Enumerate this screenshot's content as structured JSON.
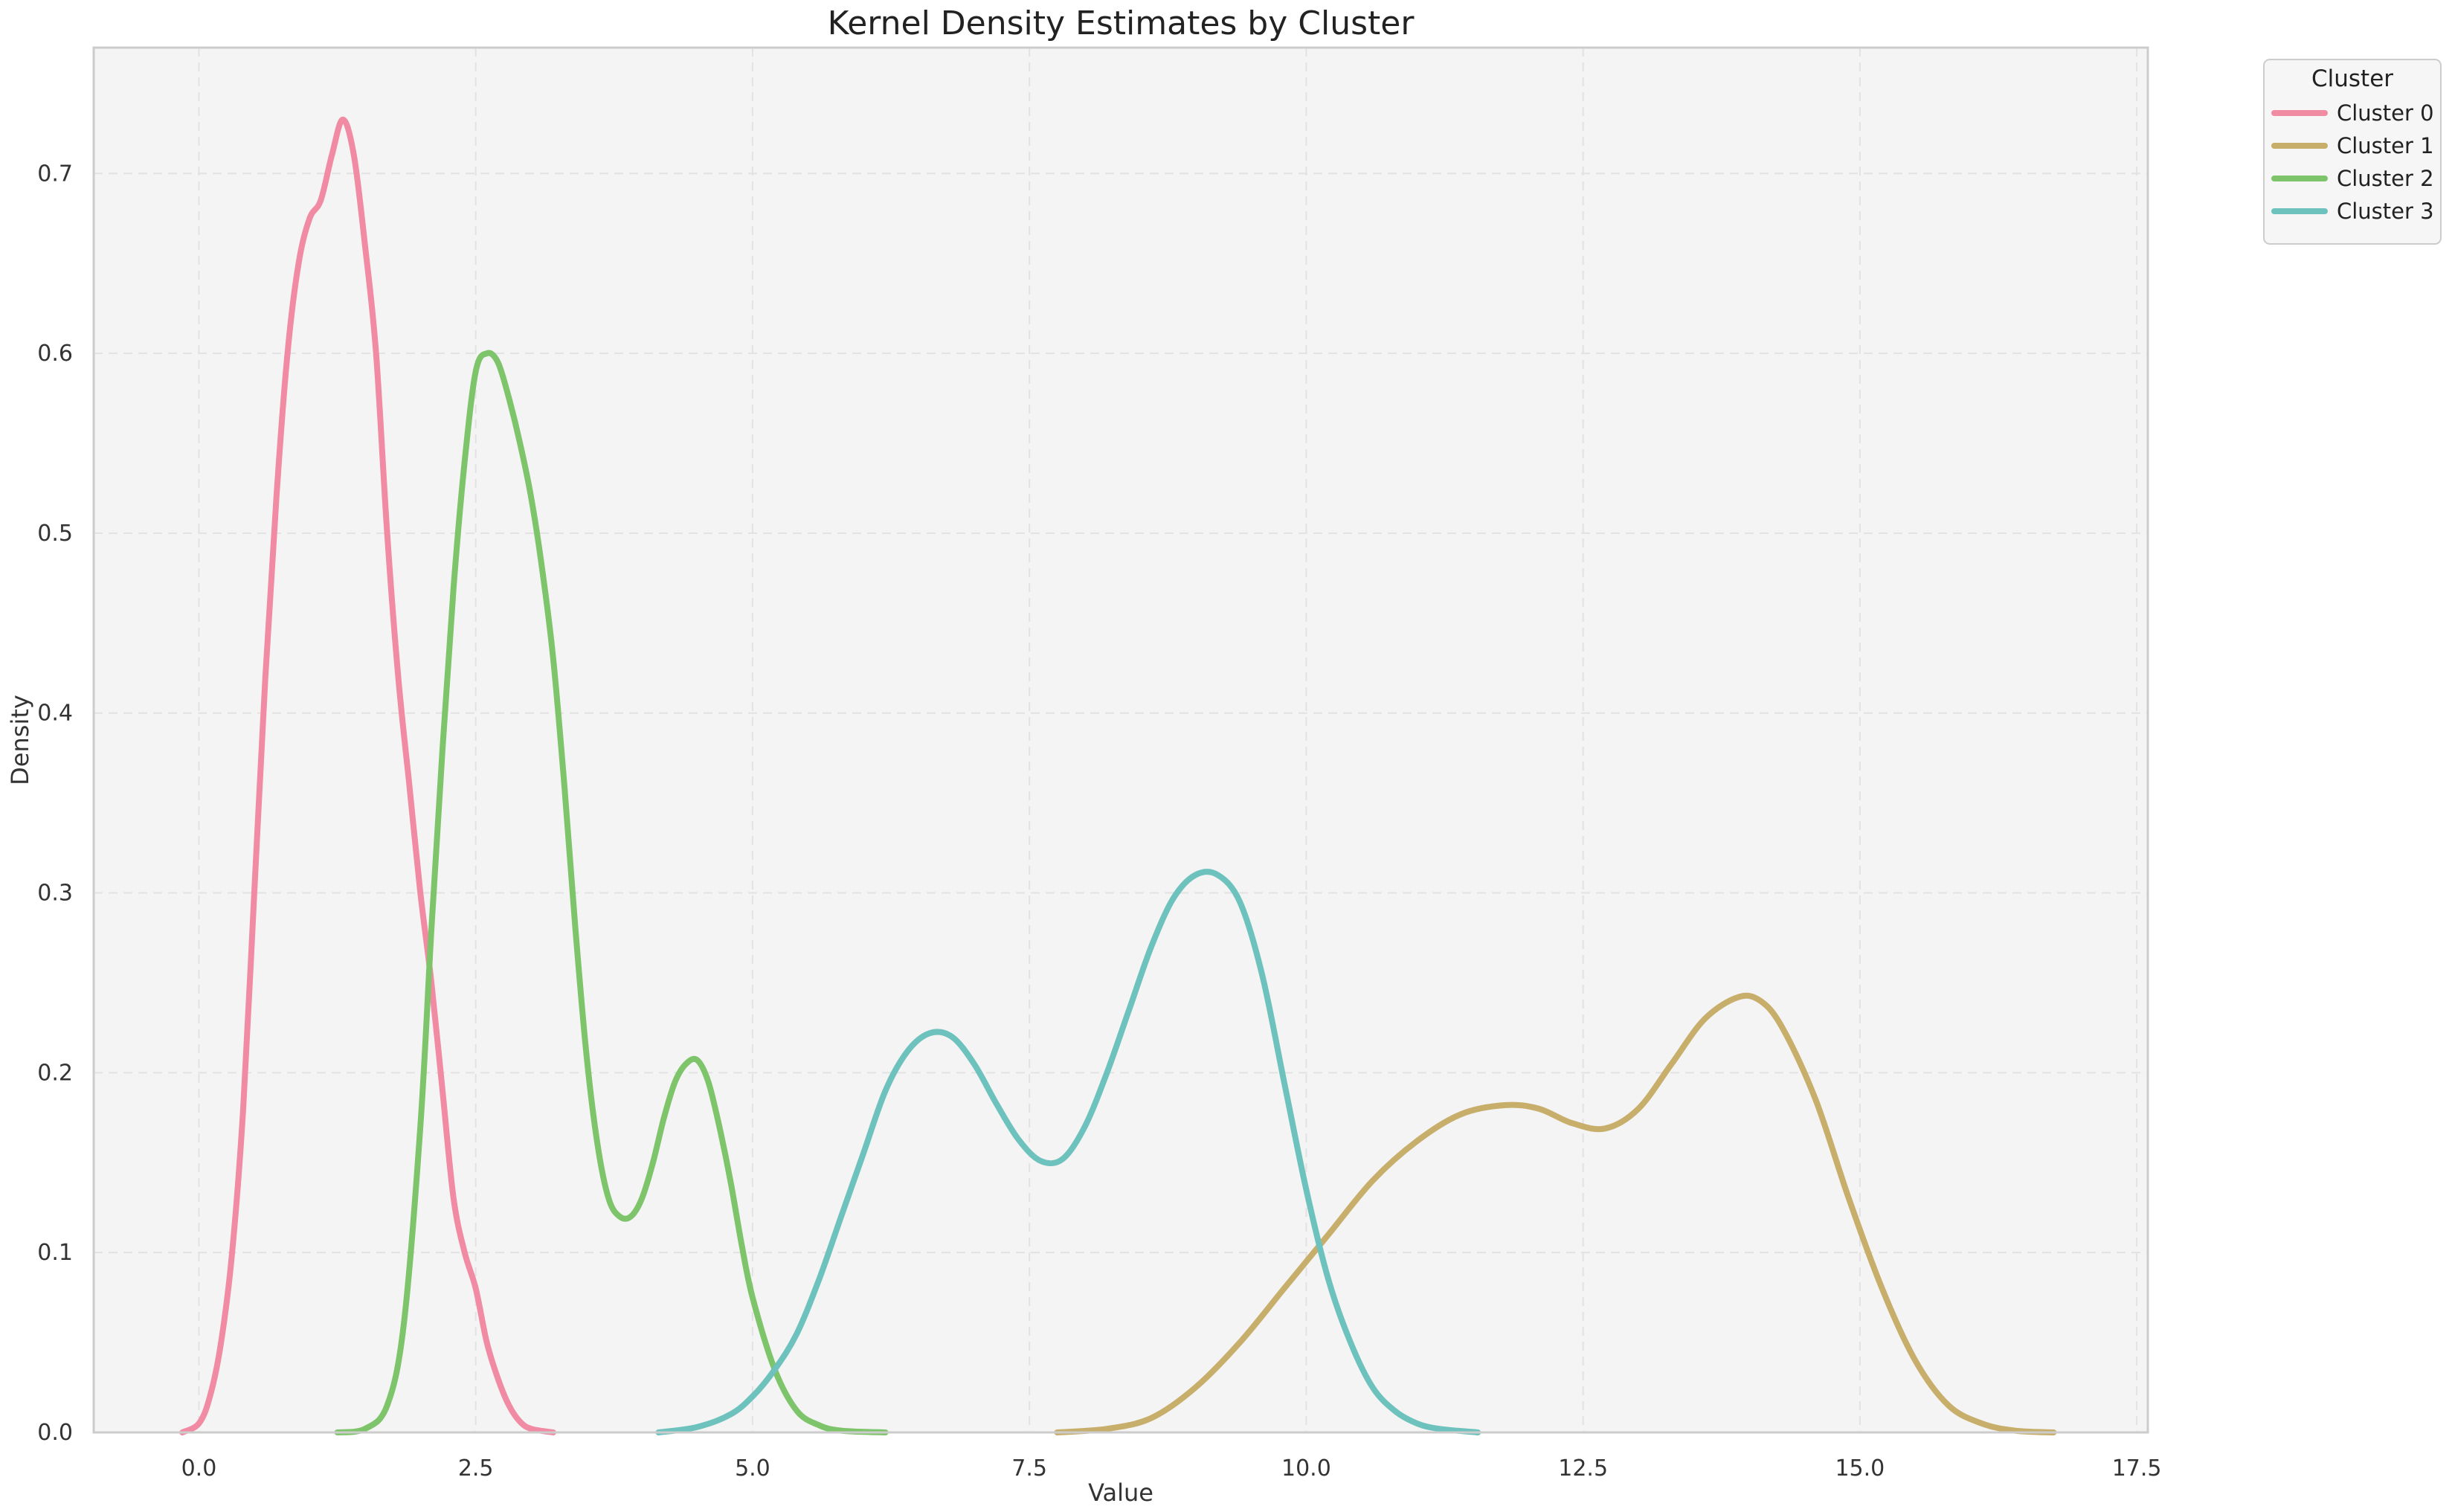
{
  "chart_data": {
    "type": "line",
    "title": "Kernel Density Estimates by Cluster",
    "xlabel": "Value",
    "ylabel": "Density",
    "xlim": [
      -0.95,
      17.6
    ],
    "ylim": [
      0,
      0.77
    ],
    "xticks": [
      0.0,
      2.5,
      5.0,
      7.5,
      10.0,
      12.5,
      15.0,
      17.5
    ],
    "xtick_labels": [
      "0.0",
      "2.5",
      "5.0",
      "7.5",
      "10.0",
      "12.5",
      "15.0",
      "17.5"
    ],
    "yticks": [
      0.0,
      0.1,
      0.2,
      0.3,
      0.4,
      0.5,
      0.6,
      0.7
    ],
    "ytick_labels": [
      "0.0",
      "0.1",
      "0.2",
      "0.3",
      "0.4",
      "0.5",
      "0.6",
      "0.7"
    ],
    "grid": true,
    "legend": {
      "title": "Cluster",
      "placement": "outside-top-right"
    },
    "series": [
      {
        "name": "Cluster 0",
        "color": "#f08ba3",
        "x": [
          -0.15,
          0.0,
          0.1,
          0.2,
          0.3,
          0.4,
          0.5,
          0.6,
          0.7,
          0.8,
          0.9,
          1.0,
          1.1,
          1.2,
          1.3,
          1.4,
          1.5,
          1.6,
          1.7,
          1.8,
          1.9,
          2.0,
          2.1,
          2.2,
          2.3,
          2.4,
          2.5,
          2.6,
          2.7,
          2.8,
          2.9,
          3.0,
          3.2
        ],
        "y": [
          0.0,
          0.005,
          0.02,
          0.05,
          0.1,
          0.18,
          0.3,
          0.42,
          0.52,
          0.6,
          0.65,
          0.675,
          0.685,
          0.71,
          0.73,
          0.71,
          0.66,
          0.6,
          0.5,
          0.42,
          0.36,
          0.3,
          0.25,
          0.19,
          0.13,
          0.1,
          0.08,
          0.05,
          0.03,
          0.015,
          0.006,
          0.002,
          0.0
        ]
      },
      {
        "name": "Cluster 1",
        "color": "#c8ae6b",
        "x": [
          7.75,
          8.2,
          8.6,
          9.0,
          9.4,
          9.8,
          10.2,
          10.6,
          11.0,
          11.4,
          11.8,
          12.1,
          12.4,
          12.7,
          13.0,
          13.3,
          13.6,
          13.9,
          14.1,
          14.3,
          14.6,
          14.9,
          15.2,
          15.5,
          15.8,
          16.1,
          16.4,
          16.75
        ],
        "y": [
          0.0,
          0.002,
          0.008,
          0.025,
          0.05,
          0.08,
          0.11,
          0.14,
          0.162,
          0.177,
          0.182,
          0.18,
          0.172,
          0.169,
          0.18,
          0.205,
          0.23,
          0.242,
          0.24,
          0.225,
          0.185,
          0.13,
          0.08,
          0.04,
          0.015,
          0.005,
          0.001,
          0.0
        ]
      },
      {
        "name": "Cluster 2",
        "color": "#7ec46a",
        "x": [
          1.25,
          1.5,
          1.7,
          1.85,
          2.0,
          2.1,
          2.2,
          2.3,
          2.4,
          2.5,
          2.6,
          2.7,
          2.8,
          2.9,
          3.0,
          3.1,
          3.2,
          3.3,
          3.4,
          3.5,
          3.6,
          3.7,
          3.8,
          3.9,
          4.0,
          4.1,
          4.2,
          4.3,
          4.4,
          4.5,
          4.6,
          4.7,
          4.8,
          4.9,
          5.0,
          5.2,
          5.4,
          5.6,
          5.8,
          6.2
        ],
        "y": [
          0.0,
          0.002,
          0.015,
          0.06,
          0.17,
          0.28,
          0.38,
          0.47,
          0.54,
          0.59,
          0.6,
          0.595,
          0.575,
          0.55,
          0.52,
          0.48,
          0.43,
          0.36,
          0.28,
          0.21,
          0.16,
          0.13,
          0.12,
          0.12,
          0.13,
          0.15,
          0.175,
          0.195,
          0.205,
          0.207,
          0.195,
          0.17,
          0.14,
          0.105,
          0.075,
          0.035,
          0.012,
          0.004,
          0.001,
          0.0
        ]
      },
      {
        "name": "Cluster 3",
        "color": "#6ec2bd",
        "x": [
          4.15,
          4.5,
          4.8,
          5.0,
          5.2,
          5.4,
          5.6,
          5.8,
          6.0,
          6.2,
          6.4,
          6.6,
          6.8,
          7.0,
          7.2,
          7.4,
          7.6,
          7.8,
          8.0,
          8.2,
          8.4,
          8.6,
          8.8,
          9.0,
          9.2,
          9.4,
          9.6,
          9.8,
          10.0,
          10.2,
          10.4,
          10.6,
          10.8,
          11.0,
          11.2,
          11.55
        ],
        "y": [
          0.0,
          0.003,
          0.01,
          0.02,
          0.035,
          0.055,
          0.085,
          0.12,
          0.155,
          0.19,
          0.212,
          0.222,
          0.22,
          0.205,
          0.183,
          0.163,
          0.151,
          0.152,
          0.17,
          0.2,
          0.235,
          0.27,
          0.297,
          0.31,
          0.31,
          0.295,
          0.255,
          0.195,
          0.135,
          0.085,
          0.05,
          0.025,
          0.012,
          0.005,
          0.002,
          0.0
        ]
      }
    ]
  }
}
